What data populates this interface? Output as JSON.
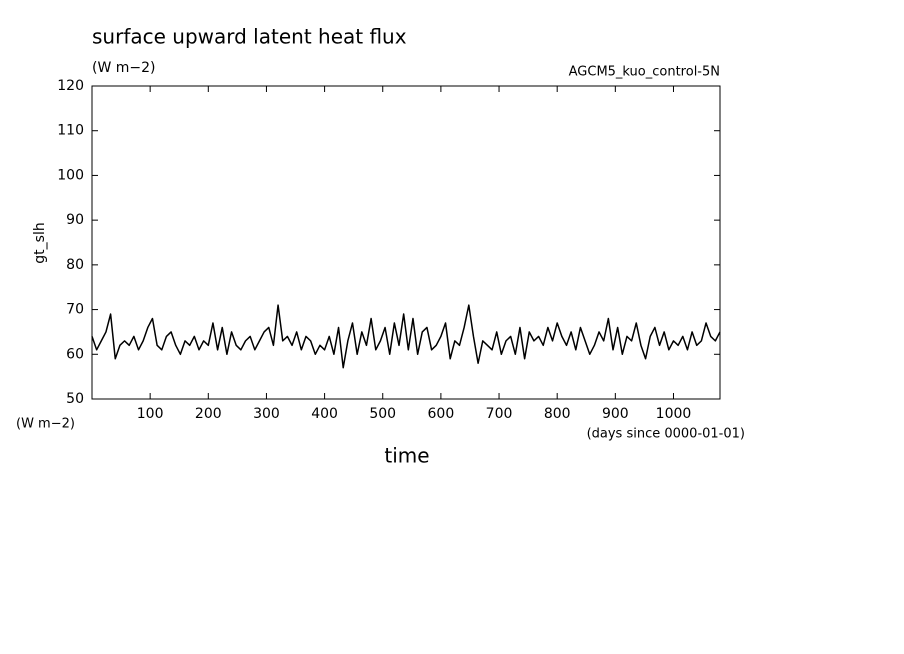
{
  "chart_data": {
    "type": "line",
    "title": "surface upward latent heat flux",
    "units": "(W m−2)",
    "subtitle": "AGCM5_kuo_control-5N",
    "y_label": "gt_slh",
    "y_units": "(W m−2)",
    "x_label": "time",
    "x_units": "(days since 0000-01-01)",
    "xlim": [
      0,
      1080
    ],
    "ylim": [
      50,
      120
    ],
    "xticks": [
      100,
      200,
      300,
      400,
      500,
      600,
      700,
      800,
      900,
      1000
    ],
    "yticks": [
      50,
      60,
      70,
      80,
      90,
      100,
      110,
      120
    ],
    "x": [
      0,
      8,
      16,
      24,
      32,
      40,
      48,
      56,
      64,
      72,
      80,
      88,
      96,
      104,
      112,
      120,
      128,
      136,
      144,
      152,
      160,
      168,
      176,
      184,
      192,
      200,
      208,
      216,
      224,
      232,
      240,
      248,
      256,
      264,
      272,
      280,
      288,
      296,
      304,
      312,
      320,
      328,
      336,
      344,
      352,
      360,
      368,
      376,
      384,
      392,
      400,
      408,
      416,
      424,
      432,
      440,
      448,
      456,
      464,
      472,
      480,
      488,
      496,
      504,
      512,
      520,
      528,
      536,
      544,
      552,
      560,
      568,
      576,
      584,
      592,
      600,
      608,
      616,
      624,
      632,
      640,
      648,
      656,
      664,
      672,
      680,
      688,
      696,
      704,
      712,
      720,
      728,
      736,
      744,
      752,
      760,
      768,
      776,
      784,
      792,
      800,
      808,
      816,
      824,
      832,
      840,
      848,
      856,
      864,
      872,
      880,
      888,
      896,
      904,
      912,
      920,
      928,
      936,
      944,
      952,
      960,
      968,
      976,
      984,
      992,
      1000,
      1008,
      1016,
      1024,
      1032,
      1040,
      1048,
      1056,
      1064,
      1072,
      1080
    ],
    "series": [
      {
        "color": "#000000",
        "values": [
          64,
          61,
          63,
          65,
          69,
          59,
          62,
          63,
          62,
          64,
          61,
          63,
          66,
          68,
          62,
          61,
          64,
          65,
          62,
          60,
          63,
          62,
          64,
          61,
          63,
          62,
          67,
          61,
          66,
          60,
          65,
          62,
          61,
          63,
          64,
          61,
          63,
          65,
          66,
          62,
          71,
          63,
          64,
          62,
          65,
          61,
          64,
          63,
          60,
          62,
          61,
          64,
          60,
          66,
          57,
          63,
          67,
          60,
          65,
          62,
          68,
          61,
          63,
          66,
          60,
          67,
          62,
          69,
          61,
          68,
          60,
          65,
          66,
          61,
          62,
          64,
          67,
          59,
          63,
          62,
          66,
          71,
          64,
          58,
          63,
          62,
          61,
          65,
          60,
          63,
          64,
          60,
          66,
          59,
          65,
          63,
          64,
          62,
          66,
          63,
          67,
          64,
          62,
          65,
          61,
          66,
          63,
          60,
          62,
          65,
          63,
          68,
          61,
          66,
          60,
          64,
          63,
          67,
          62,
          59,
          64,
          66,
          62,
          65,
          61,
          63,
          62,
          64,
          61,
          65,
          62,
          63,
          67,
          64,
          63,
          65
        ]
      }
    ]
  }
}
